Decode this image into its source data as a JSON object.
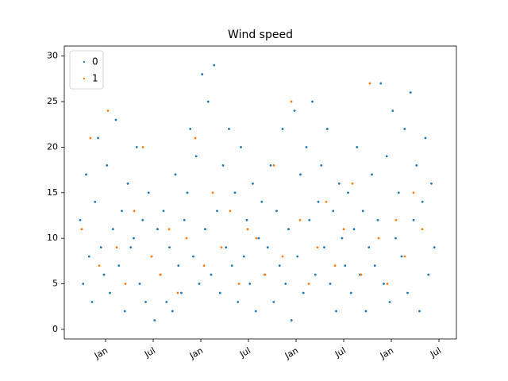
{
  "chart_data": {
    "type": "scatter",
    "title": "Wind speed",
    "xlim": [
      -5.2,
      44.2
    ],
    "ylim": [
      -1.05,
      31.1
    ],
    "xticks": [
      {
        "value": 0,
        "label": "Jan"
      },
      {
        "value": 6,
        "label": "Jul"
      },
      {
        "value": 12,
        "label": "Jan"
      },
      {
        "value": 18,
        "label": "Jul"
      },
      {
        "value": 24,
        "label": "Jan"
      },
      {
        "value": 30,
        "label": "Jul"
      },
      {
        "value": 36,
        "label": "Jan"
      },
      {
        "value": 42,
        "label": "Jul"
      }
    ],
    "yticks": [
      0,
      5,
      10,
      15,
      20,
      25,
      30
    ],
    "legend": "upper left",
    "series": [
      {
        "name": "0",
        "color": "#1f77b4",
        "x": [
          -3.2,
          -2.825,
          -2.45,
          -2.075,
          -1.7,
          -1.325,
          -0.95,
          -0.575,
          -0.2,
          0.175,
          0.55,
          0.925,
          1.3,
          1.675,
          2.05,
          2.425,
          2.8,
          3.175,
          3.55,
          3.925,
          4.3,
          4.675,
          5.05,
          5.425,
          5.8,
          6.175,
          6.55,
          6.925,
          7.3,
          7.675,
          8.05,
          8.425,
          8.8,
          9.175,
          9.55,
          9.925,
          10.3,
          10.675,
          11.05,
          11.425,
          11.8,
          12.175,
          12.55,
          12.925,
          13.3,
          13.675,
          14.05,
          14.425,
          14.8,
          15.175,
          15.55,
          15.925,
          16.3,
          16.675,
          17.05,
          17.425,
          17.8,
          18.175,
          18.55,
          18.925,
          19.3,
          19.675,
          20.05,
          20.425,
          20.8,
          21.175,
          21.55,
          21.925,
          22.3,
          22.675,
          23.05,
          23.425,
          23.8,
          24.175,
          24.55,
          24.925,
          25.3,
          25.675,
          26.05,
          26.425,
          26.8,
          27.175,
          27.55,
          27.925,
          28.3,
          28.675,
          29.05,
          29.425,
          29.8,
          30.175,
          30.55,
          30.925,
          31.3,
          31.675,
          32.05,
          32.425,
          32.8,
          33.175,
          33.55,
          33.925,
          34.3,
          34.675,
          35.05,
          35.425,
          35.8,
          36.175,
          36.55,
          36.925,
          37.3,
          37.675,
          38.05,
          38.425,
          38.8,
          39.175,
          39.55,
          39.925,
          40.3,
          40.675,
          41.05,
          41.425
        ],
        "values": [
          12,
          5,
          17,
          8,
          3,
          14,
          21,
          9,
          6,
          18,
          4,
          11,
          23,
          7,
          13,
          2,
          16,
          9,
          10,
          20,
          5,
          12,
          3,
          15,
          8,
          1,
          11,
          6,
          13,
          3,
          9,
          2,
          17,
          7,
          4,
          12,
          15,
          22,
          8,
          19,
          5,
          28,
          11,
          25,
          6,
          29,
          13,
          4,
          18,
          9,
          22,
          7,
          15,
          3,
          20,
          8,
          12,
          5,
          16,
          2,
          10,
          14,
          6,
          9,
          18,
          3,
          13,
          7,
          22,
          5,
          11,
          1,
          24,
          8,
          17,
          4,
          20,
          12,
          25,
          6,
          14,
          18,
          9,
          22,
          5,
          13,
          2,
          16,
          10,
          7,
          15,
          4,
          11,
          20,
          6,
          13,
          2,
          9,
          17,
          7,
          12,
          27,
          5,
          19,
          3,
          24,
          10,
          15,
          8,
          22,
          4,
          26,
          12,
          18,
          2,
          14,
          21,
          6,
          16,
          9
        ]
      },
      {
        "name": "1",
        "color": "#ff7f0e",
        "x": [
          -3,
          -1.9,
          -0.8,
          0.3,
          1.4,
          2.5,
          3.6,
          4.7,
          5.8,
          6.9,
          8,
          9.1,
          10.2,
          11.3,
          12.4,
          13.5,
          14.6,
          15.7,
          16.8,
          17.9,
          19,
          20.1,
          21.2,
          22.3,
          23.4,
          24.5,
          25.6,
          26.7,
          27.8,
          28.9,
          30,
          31.1,
          32.2,
          33.3,
          34.4,
          35.5,
          36.6,
          37.7,
          38.8,
          39.9
        ],
        "values": [
          11,
          21,
          7,
          24,
          9,
          5,
          13,
          20,
          8,
          6,
          11,
          4,
          10,
          21,
          7,
          15,
          9,
          13,
          5,
          11,
          10,
          6,
          18,
          8,
          25,
          12,
          5,
          9,
          14,
          7,
          11,
          16,
          6,
          27,
          10,
          5,
          12,
          8,
          15,
          11
        ]
      }
    ]
  }
}
